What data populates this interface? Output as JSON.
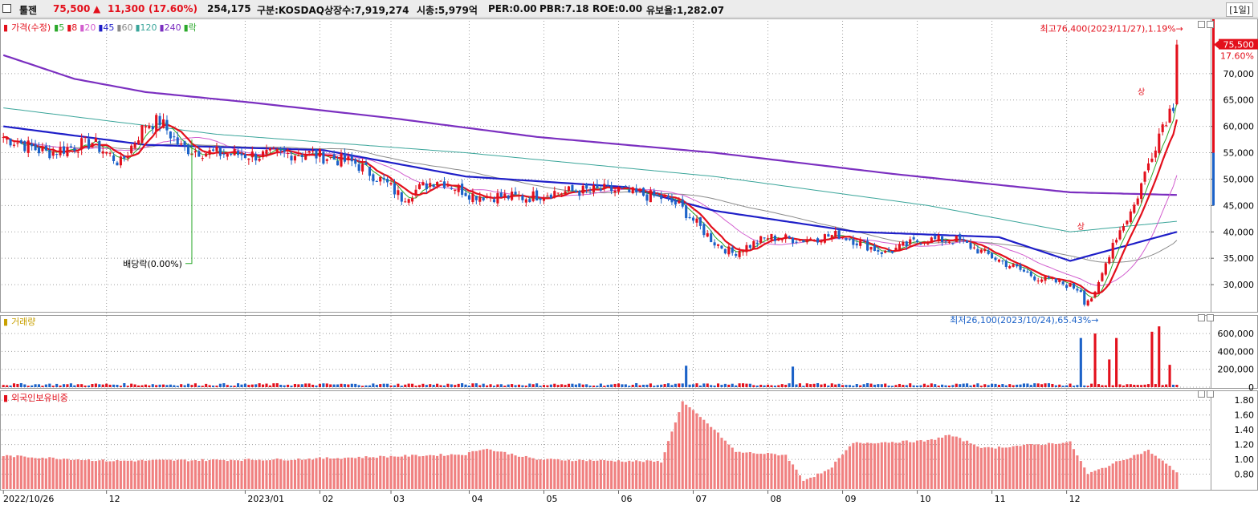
{
  "header": {
    "name": "툴젠",
    "price": "75,500",
    "change_arrow": "▲",
    "change": "11,300",
    "change_pct": "(17.60%)",
    "volume": "254,175",
    "market": "구분:KOSDAQ",
    "shares": "상장수:7,919,274",
    "mcap": "시총:5,979억",
    "per": "PER:0.00",
    "pbr": "PBR:7.18",
    "roe": "ROE:0.00",
    "float": "유보율:1,282.07",
    "period": "[1일]"
  },
  "colors": {
    "up": "#e3101c",
    "down": "#1c62c8",
    "ma5": "#2aa82a",
    "ma8": "#e3101c",
    "ma20": "#d25fcf",
    "ma45": "#1e1ec8",
    "ma60": "#8a8a8a",
    "ma120": "#3aa59a",
    "ma240": "#7b2fc0",
    "foreign": "#f08080",
    "grid": "#a0a0a0"
  },
  "legend_price": {
    "label": "가격(수정)",
    "items": [
      {
        "text": "5",
        "color": "#2aa82a"
      },
      {
        "text": "8",
        "color": "#e3101c"
      },
      {
        "text": "20",
        "color": "#d25fcf"
      },
      {
        "text": "45",
        "color": "#1e1ec8"
      },
      {
        "text": "60",
        "color": "#8a8a8a"
      },
      {
        "text": "120",
        "color": "#3aa59a"
      },
      {
        "text": "240",
        "color": "#7b2fc0"
      },
      {
        "text": "락",
        "color": "#2aa82a"
      }
    ]
  },
  "legend_volume": "거래량",
  "legend_foreign": "외국인보유비중",
  "annotations": {
    "high": "최고76,400(2023/11/27),1.19%→",
    "low": "최저26,100(2023/10/24),65.43%→",
    "dividend": "배당락(0.00%)",
    "limit_up": "상",
    "last_price": "75,500",
    "last_pct": "17.60%"
  },
  "chart_data": {
    "type": "candlestick",
    "x_labels": [
      "2022/10/26",
      "12",
      "2023/01",
      "02",
      "03",
      "04",
      "05",
      "06",
      "07",
      "08",
      "09",
      "10",
      "11",
      "12"
    ],
    "price_axis": {
      "ticks": [
        "30,000",
        "35,000",
        "40,000",
        "45,000",
        "50,000",
        "55,000",
        "60,000",
        "65,000",
        "70,000"
      ],
      "min": 25000,
      "max": 80000
    },
    "volume_axis": {
      "ticks": [
        "0",
        "200,000",
        "400,000",
        "600,000"
      ],
      "max": 780000
    },
    "foreign_axis": {
      "ticks": [
        "0.80",
        "1.00",
        "1.20",
        "1.40",
        "1.60",
        "1.80"
      ],
      "min": 0.6,
      "max": 1.9
    },
    "close_path": [
      [
        0,
        58000
      ],
      [
        12,
        55000
      ],
      [
        25,
        57000
      ],
      [
        33,
        53000
      ],
      [
        40,
        60500
      ],
      [
        44,
        61000
      ],
      [
        50,
        56000
      ],
      [
        58,
        55000
      ],
      [
        72,
        54500
      ],
      [
        85,
        55000
      ],
      [
        99,
        53000
      ],
      [
        108,
        49000
      ],
      [
        112,
        46500
      ],
      [
        122,
        50000
      ],
      [
        132,
        47000
      ],
      [
        147,
        46500
      ],
      [
        154,
        47500
      ],
      [
        170,
        48000
      ],
      [
        185,
        46500
      ],
      [
        190,
        45000
      ],
      [
        200,
        38000
      ],
      [
        205,
        36000
      ],
      [
        215,
        39000
      ],
      [
        225,
        38500
      ],
      [
        235,
        39500
      ],
      [
        248,
        36000
      ],
      [
        258,
        38500
      ],
      [
        268,
        38500
      ],
      [
        282,
        34000
      ],
      [
        290,
        31500
      ],
      [
        299,
        30000
      ],
      [
        303,
        29000
      ],
      [
        304,
        26800
      ],
      [
        307,
        28000
      ],
      [
        312,
        38000
      ],
      [
        318,
        45000
      ],
      [
        323,
        55000
      ],
      [
        326,
        60500
      ],
      [
        329,
        64200
      ],
      [
        330,
        75500
      ]
    ],
    "high": {
      "value": 76400,
      "date": "2023/11/27",
      "pct": 1.19
    },
    "low": {
      "value": 26100,
      "date": "2023/10/24",
      "pct": 65.43
    },
    "last": {
      "close": 75500,
      "change": 11300,
      "pct": 17.6
    },
    "ma240_path": [
      [
        0,
        73500
      ],
      [
        20,
        69000
      ],
      [
        40,
        66500
      ],
      [
        70,
        64500
      ],
      [
        110,
        61500
      ],
      [
        150,
        58000
      ],
      [
        200,
        55000
      ],
      [
        250,
        51000
      ],
      [
        300,
        47500
      ],
      [
        330,
        47000
      ]
    ],
    "ma120_path": [
      [
        0,
        63500
      ],
      [
        60,
        58500
      ],
      [
        130,
        55000
      ],
      [
        200,
        50500
      ],
      [
        260,
        45000
      ],
      [
        300,
        40000
      ],
      [
        330,
        42000
      ]
    ],
    "ma45_path": [
      [
        0,
        60000
      ],
      [
        40,
        56500
      ],
      [
        90,
        55500
      ],
      [
        130,
        50500
      ],
      [
        175,
        48500
      ],
      [
        200,
        44000
      ],
      [
        240,
        40000
      ],
      [
        280,
        39000
      ],
      [
        300,
        34500
      ],
      [
        330,
        40000
      ]
    ],
    "volume_spikes": [
      [
        192,
        240000
      ],
      [
        222,
        230000
      ],
      [
        303,
        550000
      ],
      [
        307,
        600000
      ],
      [
        311,
        310000
      ],
      [
        313,
        550000
      ],
      [
        323,
        620000
      ],
      [
        325,
        680000
      ],
      [
        328,
        250000
      ]
    ],
    "foreign_path": [
      [
        0,
        1.05
      ],
      [
        30,
        0.98
      ],
      [
        80,
        1.0
      ],
      [
        130,
        1.07
      ],
      [
        135,
        1.15
      ],
      [
        150,
        1.0
      ],
      [
        185,
        0.97
      ],
      [
        191,
        1.78
      ],
      [
        200,
        1.4
      ],
      [
        206,
        1.1
      ],
      [
        220,
        1.06
      ],
      [
        225,
        0.72
      ],
      [
        232,
        0.85
      ],
      [
        239,
        1.22
      ],
      [
        260,
        1.25
      ],
      [
        266,
        1.33
      ],
      [
        276,
        1.15
      ],
      [
        296,
        1.22
      ],
      [
        300,
        1.23
      ],
      [
        305,
        0.8
      ],
      [
        315,
        1.0
      ],
      [
        322,
        1.12
      ],
      [
        330,
        0.83
      ]
    ]
  }
}
